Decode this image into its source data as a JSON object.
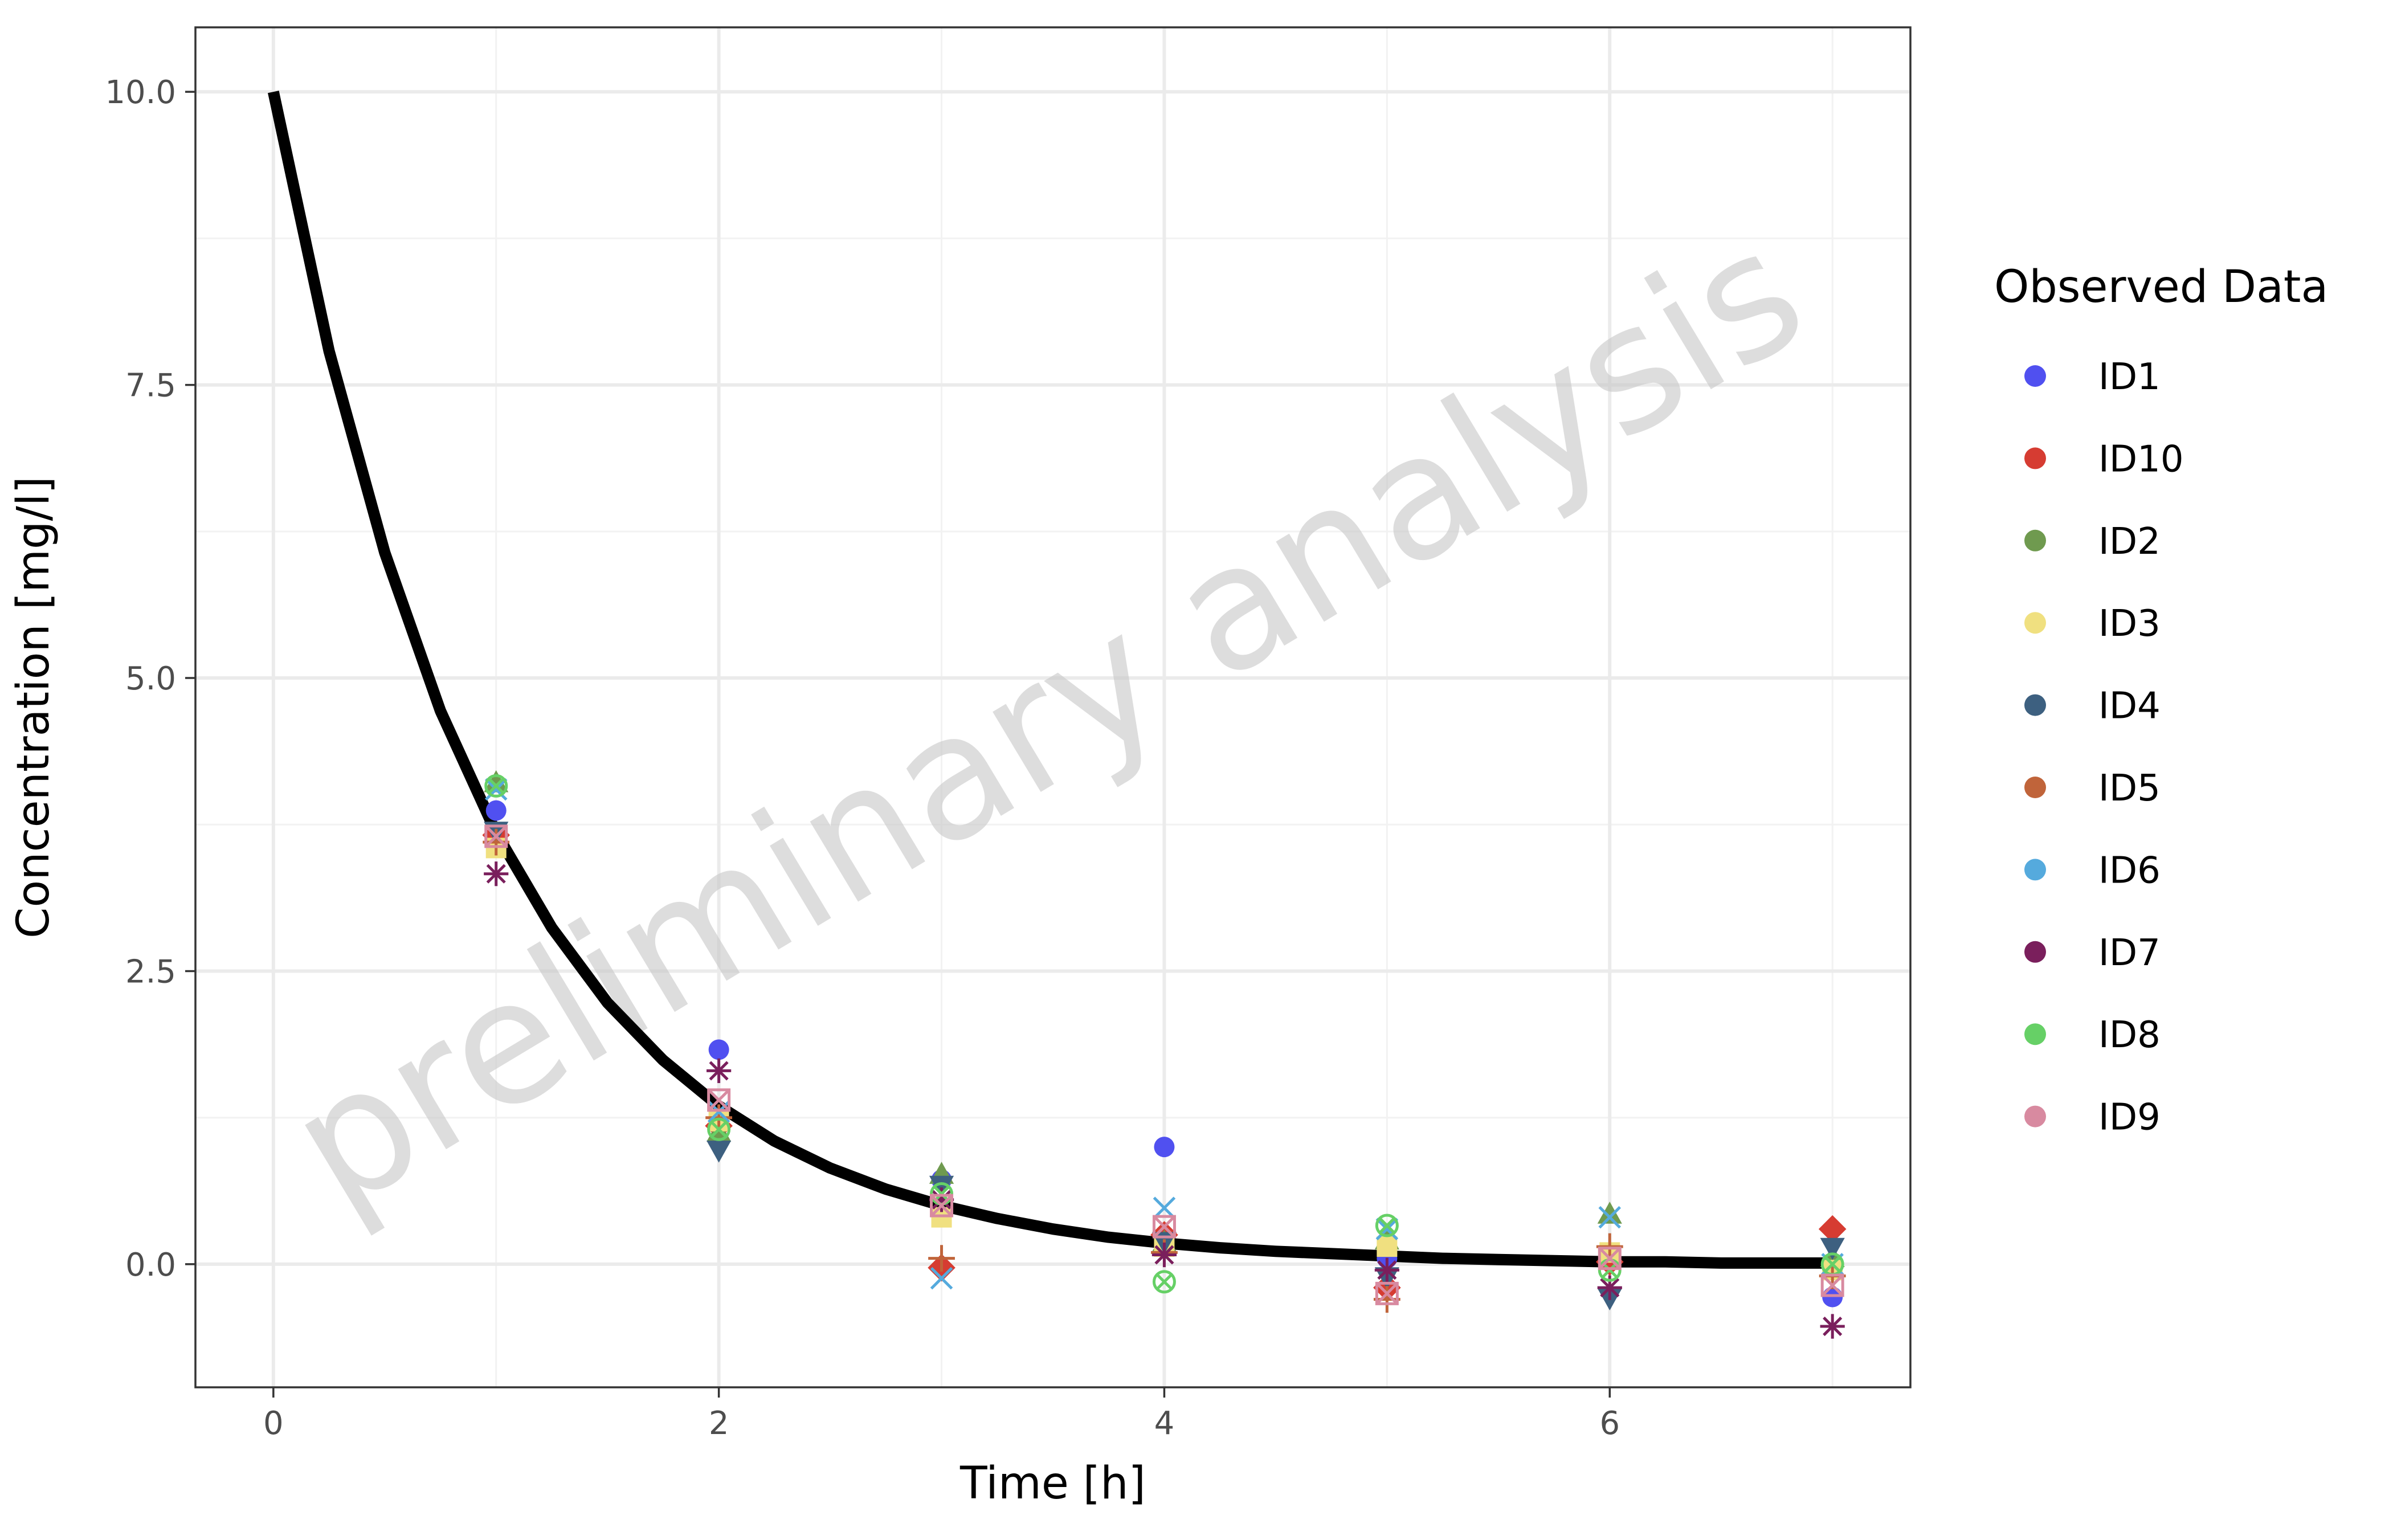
{
  "chart_data": {
    "type": "scatter",
    "title": "",
    "xlabel": "Time [h]",
    "ylabel": "Concentration [mg/l]",
    "xlim": [
      -0.35,
      7.35
    ],
    "ylim": [
      -1.05,
      10.55
    ],
    "x_ticks": [
      "0",
      "2",
      "4",
      "6"
    ],
    "x_tick_values": [
      0,
      2,
      4,
      6
    ],
    "y_ticks": [
      "0.0",
      "2.5",
      "5.0",
      "7.5",
      "10.0"
    ],
    "y_tick_values": [
      0,
      2.5,
      5,
      7.5,
      10
    ],
    "grid": true,
    "watermark": "preliminary analysis",
    "legend": {
      "title": "Observed Data",
      "position": "right"
    },
    "model_line": {
      "color": "#000000",
      "x": [
        0,
        0.25,
        0.5,
        0.75,
        1,
        1.25,
        1.5,
        1.75,
        2,
        2.25,
        2.5,
        2.75,
        3,
        3.25,
        3.5,
        3.75,
        4,
        4.25,
        4.5,
        4.75,
        5,
        5.25,
        5.5,
        5.75,
        6,
        6.25,
        6.5,
        6.75,
        7
      ],
      "y": [
        10,
        7.79,
        6.07,
        4.72,
        3.68,
        2.87,
        2.23,
        1.74,
        1.35,
        1.05,
        0.82,
        0.64,
        0.5,
        0.39,
        0.3,
        0.23,
        0.18,
        0.14,
        0.11,
        0.09,
        0.07,
        0.05,
        0.04,
        0.03,
        0.02,
        0.02,
        0.01,
        0.01,
        0.01
      ]
    },
    "series": [
      {
        "name": "ID1",
        "color": "#5050f0",
        "shape": "circle",
        "x": [
          1,
          2,
          3,
          4,
          5,
          6,
          7
        ],
        "y": [
          3.87,
          1.83,
          0.72,
          1.0,
          0.05,
          0.1,
          -0.28
        ]
      },
      {
        "name": "ID10",
        "color": "#d63c32",
        "shape": "diamond",
        "x": [
          1,
          2,
          3,
          4,
          5,
          6,
          7
        ],
        "y": [
          3.66,
          1.18,
          -0.03,
          0.25,
          -0.2,
          0.02,
          0.3
        ]
      },
      {
        "name": "ID2",
        "color": "#6f9a4f",
        "shape": "triangle",
        "x": [
          1,
          2,
          3,
          4,
          5,
          6,
          7
        ],
        "y": [
          4.1,
          1.12,
          0.76,
          0.18,
          0.2,
          0.42,
          0.05
        ]
      },
      {
        "name": "ID3",
        "color": "#f0e080",
        "shape": "square",
        "x": [
          1,
          2,
          3,
          4,
          5,
          6,
          7
        ],
        "y": [
          3.55,
          1.22,
          0.4,
          0.15,
          0.15,
          0.1,
          -0.05
        ]
      },
      {
        "name": "ID4",
        "color": "#3d6080",
        "shape": "triangle-down",
        "x": [
          1,
          2,
          3,
          4,
          5,
          6,
          7
        ],
        "y": [
          3.7,
          0.98,
          0.68,
          0.2,
          -0.1,
          -0.28,
          0.15
        ]
      },
      {
        "name": "ID5",
        "color": "#c0643a",
        "shape": "plus",
        "x": [
          1,
          2,
          3,
          4,
          5,
          6,
          7
        ],
        "y": [
          3.6,
          1.25,
          0.05,
          0.1,
          -0.3,
          0.15,
          -0.1
        ]
      },
      {
        "name": "ID6",
        "color": "#55aadd",
        "shape": "cross",
        "x": [
          1,
          2,
          3,
          4,
          5,
          6,
          7
        ],
        "y": [
          4.05,
          1.3,
          -0.12,
          0.48,
          0.3,
          0.4,
          0.0
        ]
      },
      {
        "name": "ID7",
        "color": "#7a1f5c",
        "shape": "asterisk",
        "x": [
          1,
          2,
          3,
          4,
          5,
          6,
          7
        ],
        "y": [
          3.33,
          1.65,
          0.55,
          0.08,
          -0.05,
          -0.2,
          -0.53
        ]
      },
      {
        "name": "ID8",
        "color": "#66d066",
        "shape": "x-circle",
        "x": [
          1,
          2,
          3,
          4,
          5,
          6,
          7
        ],
        "y": [
          4.08,
          1.15,
          0.6,
          -0.15,
          0.33,
          -0.05,
          0.0
        ]
      },
      {
        "name": "ID9",
        "color": "#d88aa0",
        "shape": "square-x",
        "x": [
          1,
          2,
          3,
          4,
          5,
          6,
          7
        ],
        "y": [
          3.65,
          1.4,
          0.5,
          0.32,
          -0.25,
          0.05,
          -0.18
        ]
      }
    ]
  }
}
